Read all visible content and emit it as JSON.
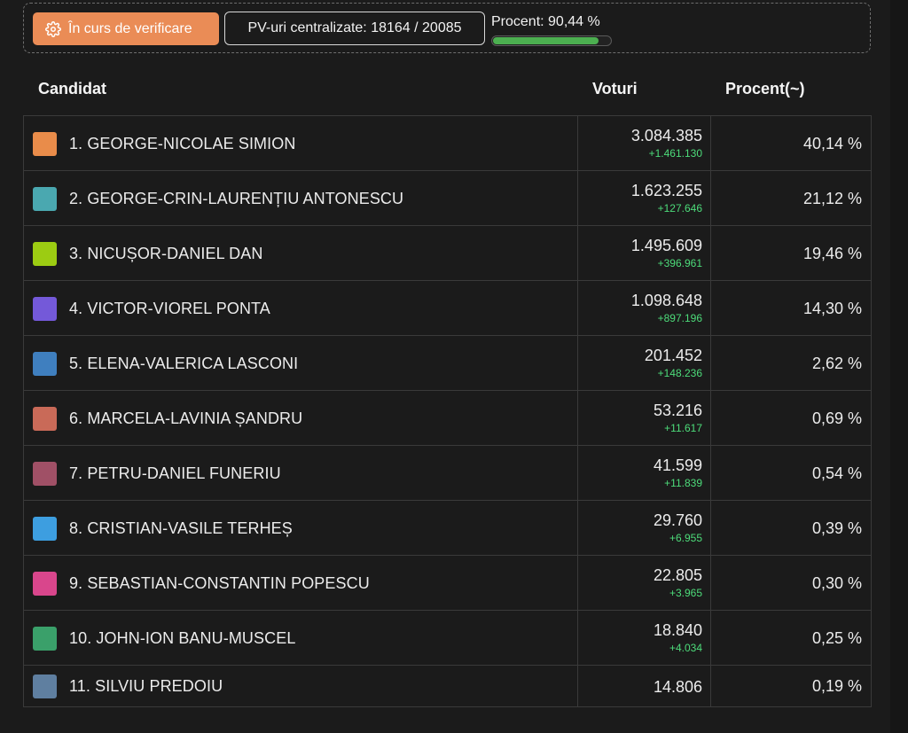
{
  "status": {
    "verify_label": "În curs de verificare",
    "pv_label": "PV-uri centralizate: 18164 / 20085",
    "percent_label": "Procent: 90,44 %",
    "progress": 0.9044,
    "accent": "#ea8c56",
    "progress_color": "#4caf50"
  },
  "table": {
    "headers": {
      "candidate": "Candidat",
      "votes": "Voturi",
      "percent": "Procent(~)"
    },
    "rows": [
      {
        "name": "1. GEORGE-NICOLAE SIMION",
        "color": "#e98c4a",
        "votes": "3.084.385",
        "delta": "+1.461.130",
        "percent": "40,14 %"
      },
      {
        "name": "2. GEORGE-CRIN-LAURENȚIU ANTONESCU",
        "color": "#4aa8b0",
        "votes": "1.623.255",
        "delta": "+127.646",
        "percent": "21,12 %"
      },
      {
        "name": "3. NICUȘOR-DANIEL DAN",
        "color": "#9ccc12",
        "votes": "1.495.609",
        "delta": "+396.961",
        "percent": "19,46 %"
      },
      {
        "name": "4. VICTOR-VIOREL PONTA",
        "color": "#7459d9",
        "votes": "1.098.648",
        "delta": "+897.196",
        "percent": "14,30 %"
      },
      {
        "name": "5. ELENA-VALERICA LASCONI",
        "color": "#3f7fbf",
        "votes": "201.452",
        "delta": "+148.236",
        "percent": "2,62 %"
      },
      {
        "name": "6. MARCELA-LAVINIA ȘANDRU",
        "color": "#c96a58",
        "votes": "53.216",
        "delta": "+11.617",
        "percent": "0,69 %"
      },
      {
        "name": "7. PETRU-DANIEL FUNERIU",
        "color": "#a05066",
        "votes": "41.599",
        "delta": "+11.839",
        "percent": "0,54 %"
      },
      {
        "name": "8. CRISTIAN-VASILE TERHEȘ",
        "color": "#3d9ee0",
        "votes": "29.760",
        "delta": "+6.955",
        "percent": "0,39 %"
      },
      {
        "name": "9. SEBASTIAN-CONSTANTIN POPESCU",
        "color": "#d9468c",
        "votes": "22.805",
        "delta": "+3.965",
        "percent": "0,30 %"
      },
      {
        "name": "10. JOHN-ION BANU-MUSCEL",
        "color": "#3aa06a",
        "votes": "18.840",
        "delta": "+4.034",
        "percent": "0,25 %"
      },
      {
        "name": "11. SILVIU PREDOIU",
        "color": "#5f7fa0",
        "votes": "14.806",
        "delta": "",
        "percent": "0,19 %"
      }
    ]
  }
}
